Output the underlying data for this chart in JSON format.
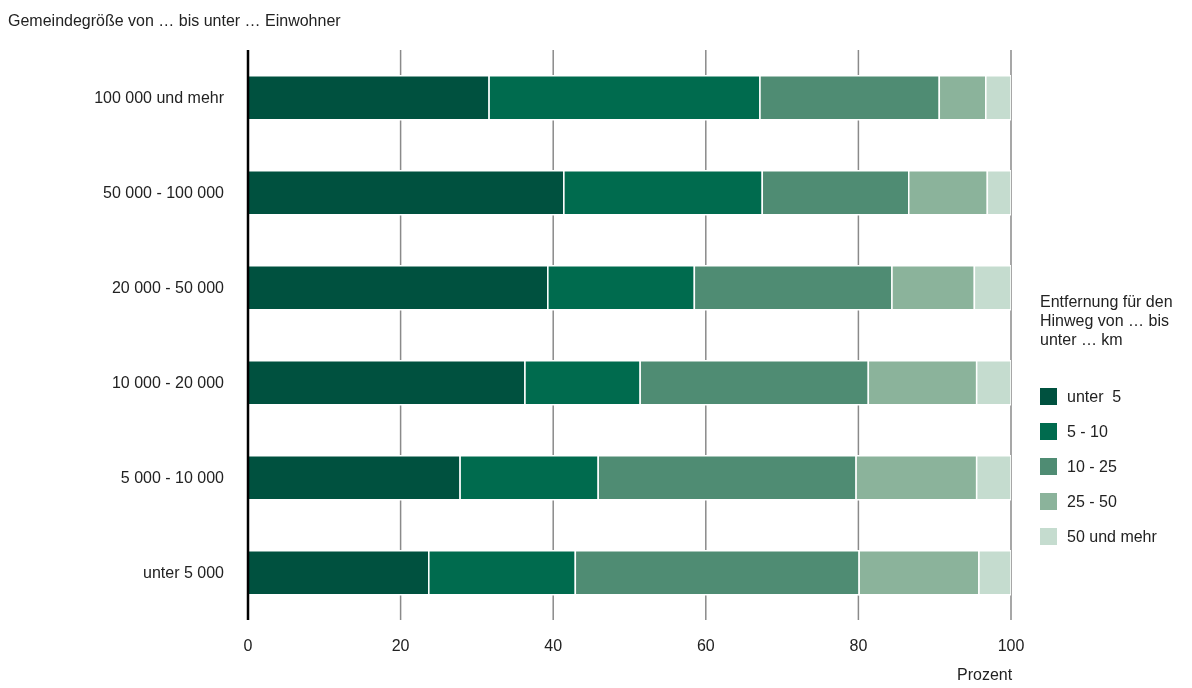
{
  "chart_data": {
    "type": "bar",
    "orientation": "horizontal",
    "stacked": true,
    "title": "Gemeindegröße von … bis unter … Einwohner",
    "xlabel": "Prozent",
    "legend_title": "Entfernung für den Hinweg von … bis unter … km",
    "categories": [
      "100 000 und mehr",
      "50 000 - 100 000",
      "20 000 - 50 000",
      "10 000 - 20 000",
      "5 000 - 10 000",
      "unter 5 000"
    ],
    "series": [
      {
        "name": "unter  5",
        "color": "#00513f",
        "values": [
          31.6,
          41.4,
          39.3,
          36.3,
          27.8,
          23.7
        ]
      },
      {
        "name": "5 - 10",
        "color": "#006b4e",
        "values": [
          35.5,
          26.0,
          19.2,
          15.1,
          18.1,
          19.2
        ]
      },
      {
        "name": "10 - 25",
        "color": "#4f8c73",
        "values": [
          23.5,
          19.2,
          25.9,
          29.9,
          33.8,
          37.2
        ]
      },
      {
        "name": "25 - 50",
        "color": "#8bb39b",
        "values": [
          6.1,
          10.3,
          10.8,
          14.2,
          15.8,
          15.7
        ]
      },
      {
        "name": "50 und mehr",
        "color": "#c5dccf",
        "values": [
          3.3,
          3.1,
          4.8,
          4.5,
          4.5,
          4.2
        ]
      }
    ],
    "xlim": [
      0,
      100
    ],
    "xticks": [
      0,
      20,
      40,
      60,
      80,
      100
    ],
    "grid": "x",
    "legend": "right"
  }
}
